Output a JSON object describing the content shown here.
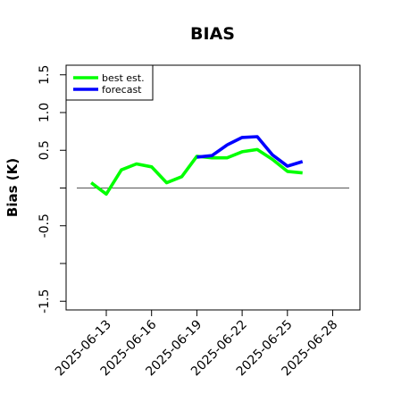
{
  "chart_data": {
    "type": "line",
    "title": "BIAS",
    "xlabel": "",
    "ylabel": "Bias (K)",
    "ylim": [
      -1.6,
      1.6
    ],
    "y_ticks": [
      -1.5,
      -1.0,
      -0.5,
      0.0,
      0.5,
      1.0,
      1.5
    ],
    "y_tick_labels": [
      "-1.5",
      "",
      "-0.5",
      "",
      "0.5",
      "1.0",
      "1.5"
    ],
    "x_tick_dates": [
      "2025-06-13",
      "2025-06-16",
      "2025-06-19",
      "2025-06-22",
      "2025-06-25",
      "2025-06-28"
    ],
    "x_tick_labels": [
      "2025-06-13",
      "2025-06-16",
      "2025-06-19",
      "2025-06-22",
      "2025-06-25",
      "2025-06-28"
    ],
    "x_tick_label_colors": [
      "#000000",
      "#000000",
      "#228B22",
      "#000000",
      "#000000",
      "#000000"
    ],
    "reference_line": 0,
    "grid": false,
    "legend_position": "top-left",
    "series": [
      {
        "name": "best est.",
        "color": "#00ff00",
        "x": [
          "2025-06-12",
          "2025-06-13",
          "2025-06-14",
          "2025-06-15",
          "2025-06-16",
          "2025-06-17",
          "2025-06-18",
          "2025-06-19",
          "2025-06-20",
          "2025-06-21",
          "2025-06-22",
          "2025-06-23",
          "2025-06-24",
          "2025-06-25",
          "2025-06-26"
        ],
        "values": [
          0.07,
          -0.08,
          0.24,
          0.32,
          0.28,
          0.07,
          0.15,
          0.42,
          0.4,
          0.4,
          0.48,
          0.51,
          0.38,
          0.22,
          0.2
        ]
      },
      {
        "name": "forecast",
        "color": "#0000ff",
        "x": [
          "2025-06-19",
          "2025-06-20",
          "2025-06-21",
          "2025-06-22",
          "2025-06-23",
          "2025-06-24",
          "2025-06-25",
          "2025-06-26"
        ],
        "values": [
          0.41,
          0.43,
          0.57,
          0.67,
          0.68,
          0.44,
          0.29,
          0.35
        ]
      }
    ]
  }
}
